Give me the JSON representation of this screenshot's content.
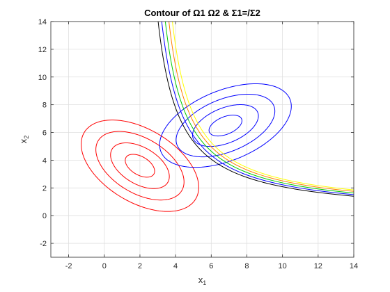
{
  "chart_data": {
    "type": "contour",
    "title": "Contour of Ω1 Ω2  & Σ1=/Σ2",
    "xlabel": "x",
    "xlabel_sub": "1",
    "ylabel": "x",
    "ylabel_sub": "2",
    "xlim": [
      -3,
      14
    ],
    "ylim": [
      -3,
      14
    ],
    "xticks": [
      -2,
      0,
      2,
      4,
      6,
      8,
      10,
      12,
      14
    ],
    "yticks": [
      -2,
      0,
      2,
      4,
      6,
      8,
      10,
      12,
      14
    ],
    "grid": true,
    "colors": {
      "class1": "#ff0000",
      "class2": "#0000ff",
      "boundaries": [
        "#000000",
        "#0000ff",
        "#00cc00",
        "#ff8000",
        "#ffff00"
      ]
    },
    "series": [
      {
        "kind": "gaussian_contours",
        "color": "#ff0000",
        "mean": [
          2.0,
          3.6
        ],
        "semi_axes": [
          1.0,
          0.6
        ],
        "angle_deg": -45,
        "levels": [
          1.0,
          2.0,
          3.0,
          4.0
        ]
      },
      {
        "kind": "gaussian_contours",
        "color": "#0000ff",
        "mean": [
          6.8,
          6.5
        ],
        "semi_axes": [
          1.03,
          0.6
        ],
        "angle_deg": 33,
        "levels": [
          1.0,
          2.0,
          3.0,
          4.0
        ]
      },
      {
        "kind": "decision_boundaries",
        "form": "x1 = a + b / (x2 - c)",
        "curves": [
          {
            "color": "#000000",
            "a": 1.8,
            "b": 17.1,
            "c": 0.0
          },
          {
            "color": "#0000ff",
            "a": 2.0,
            "b": 17.0,
            "c": 0.1
          },
          {
            "color": "#00cc00",
            "a": 2.2,
            "b": 16.9,
            "c": 0.2
          },
          {
            "color": "#ff8000",
            "a": 2.4,
            "b": 16.8,
            "c": 0.3
          },
          {
            "color": "#ffff00",
            "a": 2.6,
            "b": 16.6,
            "c": 0.4
          }
        ]
      }
    ]
  }
}
